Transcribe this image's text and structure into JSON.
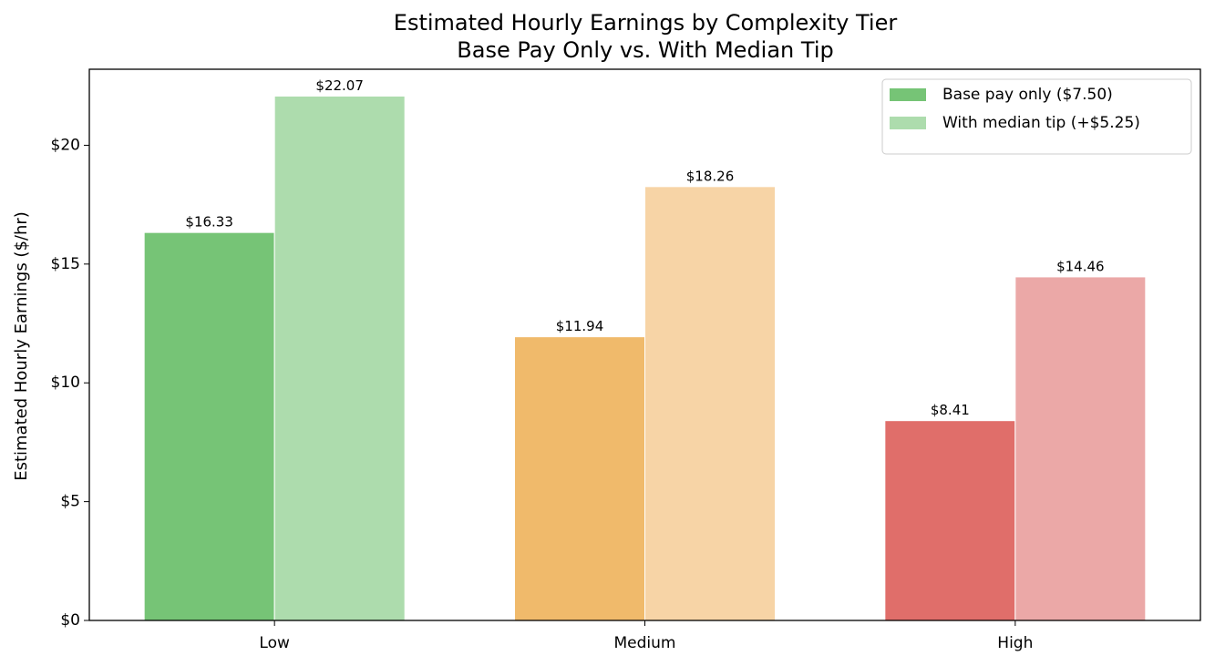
{
  "chart_data": {
    "type": "grouped-bar",
    "title": "Estimated Hourly Earnings by Complexity Tier",
    "subtitle": "Base Pay Only vs. With Median Tip",
    "y_label": "Estimated Hourly Earnings ($/hr)",
    "categories": [
      "Low",
      "Medium",
      "High"
    ],
    "series": [
      {
        "name": "Base pay only ($7.50)",
        "colors": [
          "#76c476",
          "#f0ba6b",
          "#e06e6a"
        ],
        "values": [
          16.33,
          11.94,
          8.41
        ],
        "value_labels": [
          "$16.33",
          "$11.94",
          "$8.41"
        ]
      },
      {
        "name": "With median tip (+$5.25)",
        "colors": [
          "#addcad",
          "#f7d4a6",
          "#eba8a7"
        ],
        "values": [
          22.07,
          18.26,
          14.46
        ],
        "value_labels": [
          "$22.07",
          "$18.26",
          "$14.46"
        ]
      }
    ],
    "ylim": [
      0,
      23.2
    ],
    "yticks": [
      {
        "value": 0,
        "label": "$0"
      },
      {
        "value": 5,
        "label": "$5"
      },
      {
        "value": 10,
        "label": "$10"
      },
      {
        "value": 15,
        "label": "$15"
      },
      {
        "value": 20,
        "label": "$20"
      }
    ],
    "legend": "upper right"
  }
}
